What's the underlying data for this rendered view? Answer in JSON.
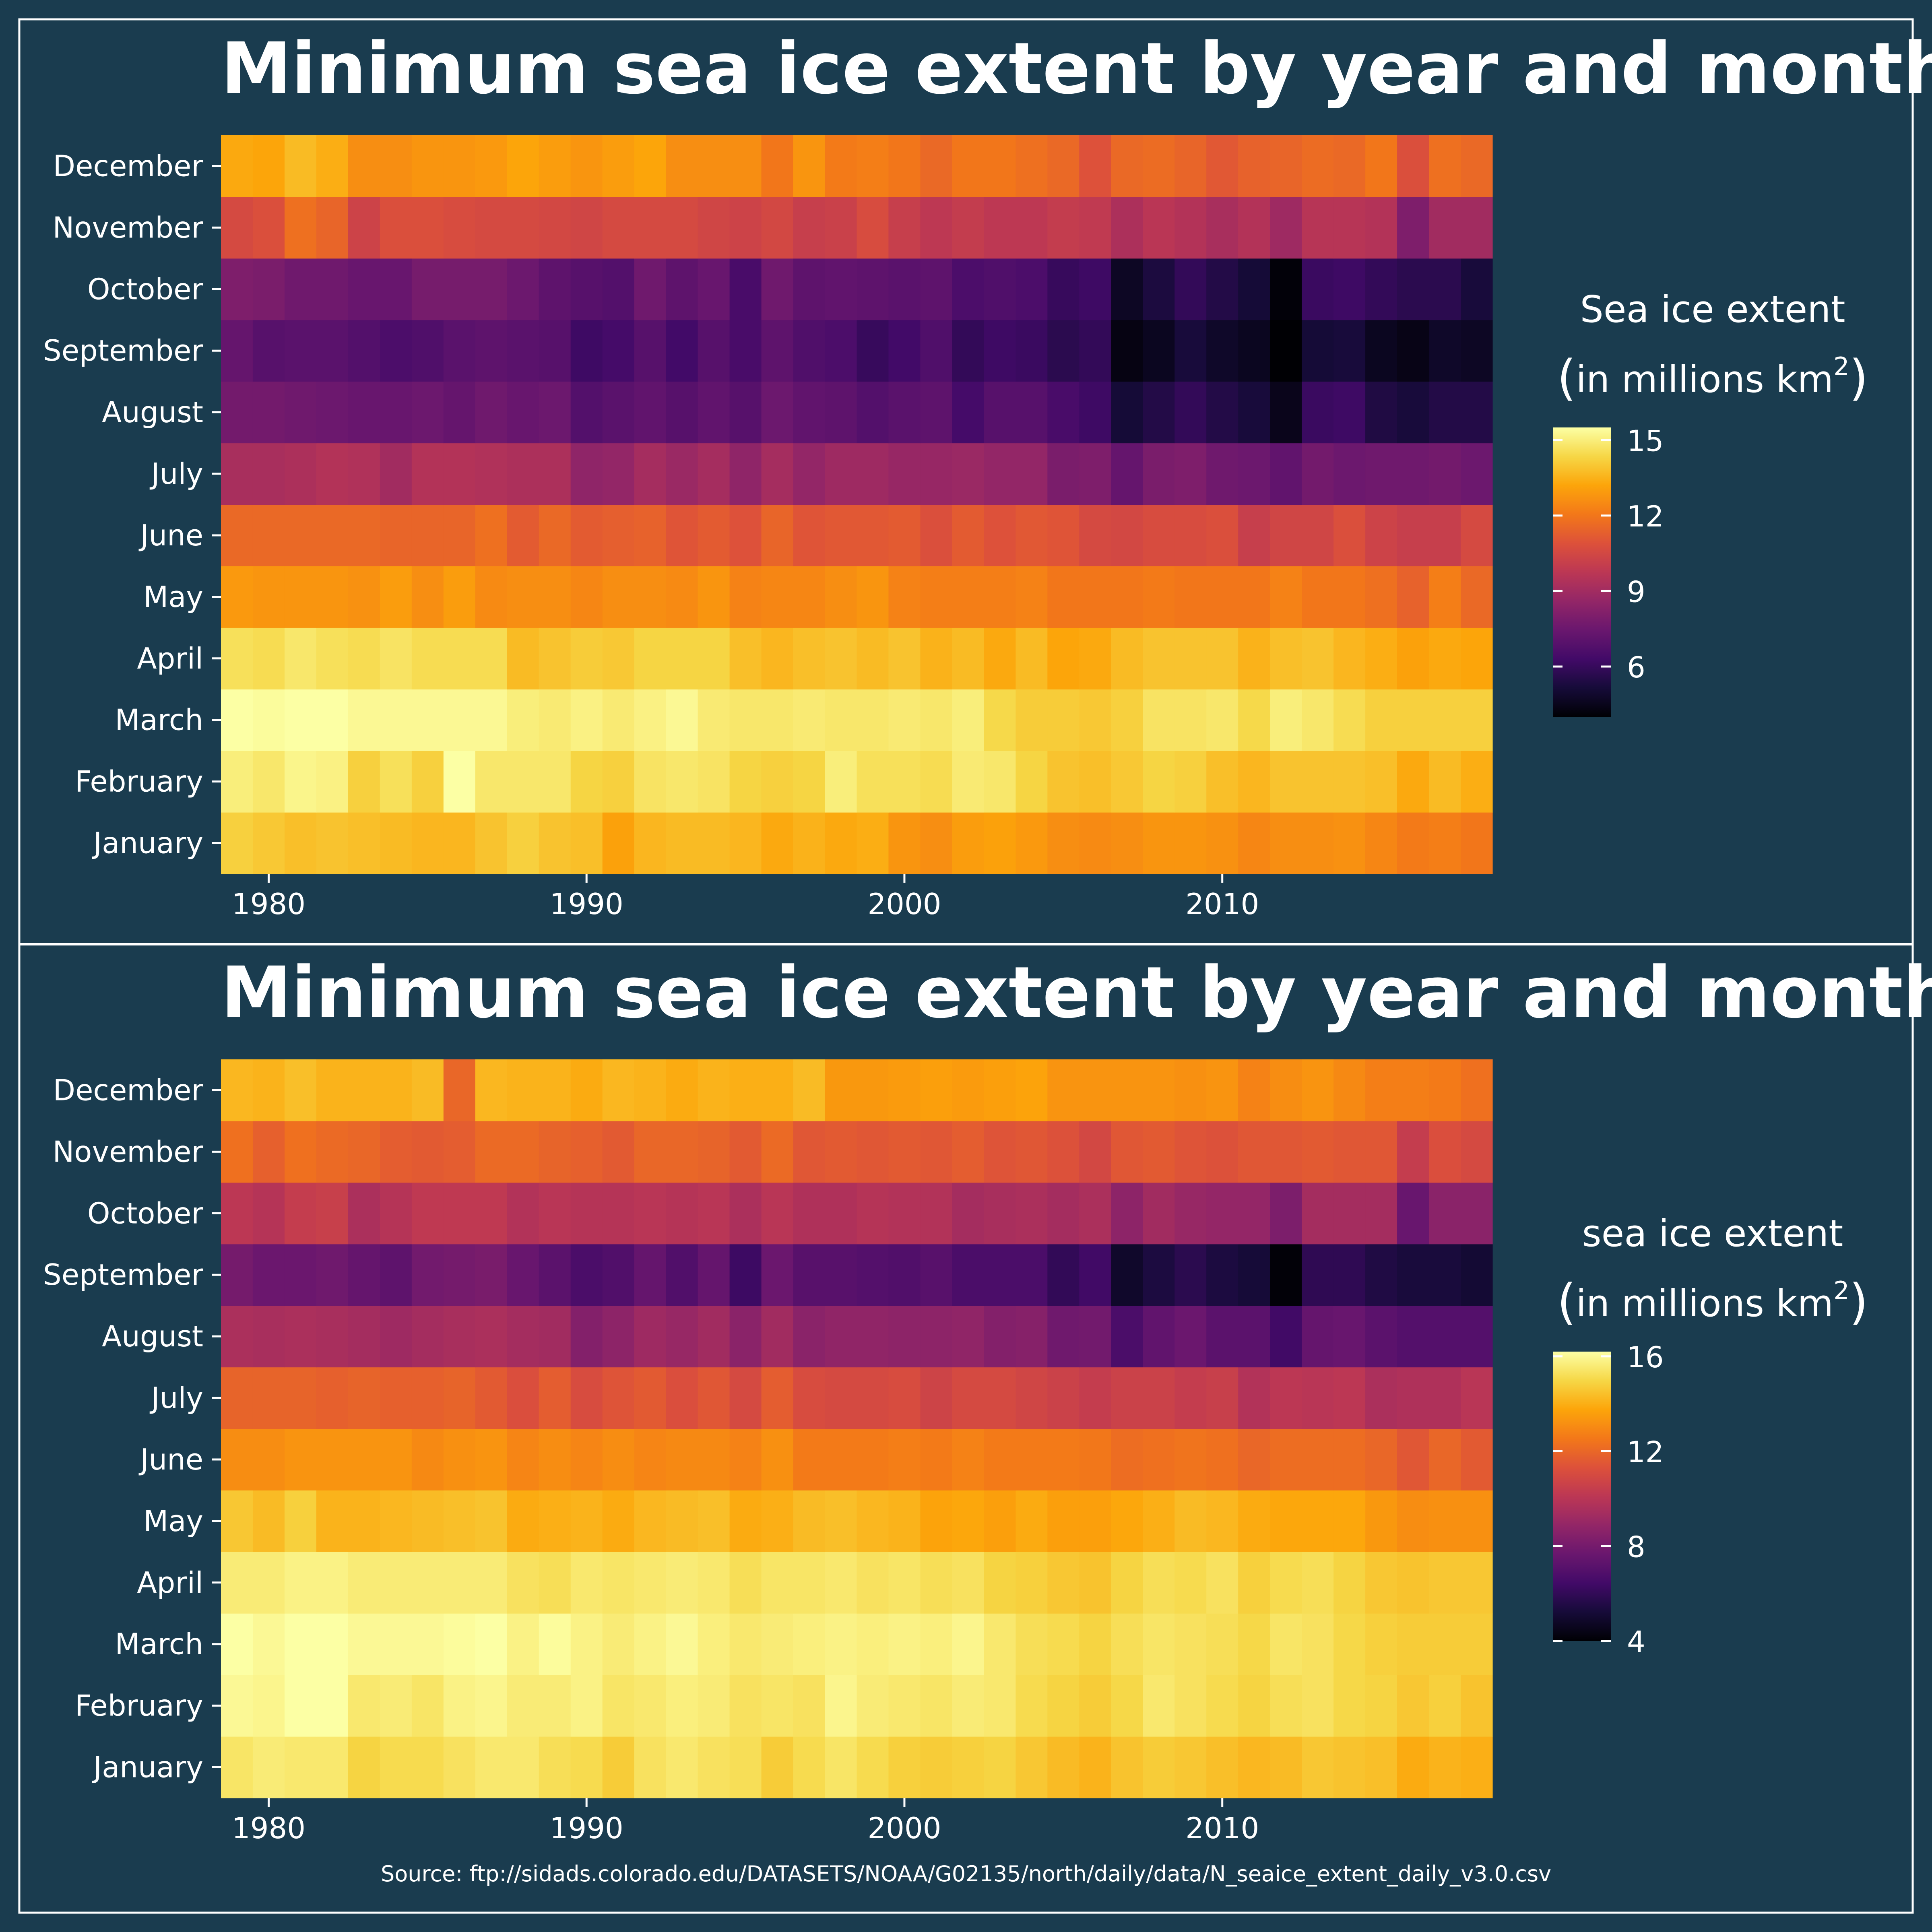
{
  "source": "Source: ftp://sidads.colorado.edu/DATASETS/NOAA/G02135/north/daily/data/N_seaice_extent_daily_v3.0.csv",
  "background_color": "#1a3c4f",
  "colormap": "inferno",
  "chart_data": [
    {
      "type": "heatmap",
      "title": "Minimum sea ice extent by year and month",
      "x": [
        1979,
        1980,
        1981,
        1982,
        1983,
        1984,
        1985,
        1986,
        1987,
        1988,
        1989,
        1990,
        1991,
        1992,
        1993,
        1994,
        1995,
        1996,
        1997,
        1998,
        1999,
        2000,
        2001,
        2002,
        2003,
        2004,
        2005,
        2006,
        2007,
        2008,
        2009,
        2010,
        2011,
        2012,
        2013,
        2014,
        2015,
        2016,
        2017,
        2018
      ],
      "x_ticks": [
        1980,
        1990,
        2000,
        2010
      ],
      "y_categories": [
        "January",
        "February",
        "March",
        "April",
        "May",
        "June",
        "July",
        "August",
        "September",
        "October",
        "November",
        "December"
      ],
      "legend_title_line1": "Sea ice extent",
      "legend_title_line2": "in millions km",
      "legend_sup": "2",
      "legend_range": [
        4.0,
        15.5
      ],
      "legend_ticks": [
        15,
        12,
        9,
        6
      ],
      "values": [
        [
          14.2,
          14.0,
          13.8,
          13.9,
          13.8,
          13.7,
          13.6,
          13.6,
          13.9,
          14.2,
          13.9,
          13.8,
          13.1,
          13.6,
          13.7,
          13.7,
          13.6,
          13.3,
          13.5,
          13.3,
          13.4,
          12.8,
          12.6,
          13.0,
          13.1,
          12.9,
          12.6,
          12.5,
          12.6,
          12.8,
          12.8,
          12.7,
          12.4,
          12.6,
          12.6,
          12.7,
          12.4,
          12.1,
          12.2,
          12.0
        ],
        [
          15.0,
          14.8,
          15.2,
          15.1,
          14.2,
          14.6,
          14.2,
          15.5,
          14.8,
          14.8,
          14.8,
          14.3,
          14.2,
          14.7,
          14.8,
          14.7,
          14.3,
          14.2,
          14.3,
          15.0,
          14.6,
          14.6,
          14.5,
          14.9,
          14.8,
          14.3,
          13.9,
          13.8,
          14.0,
          14.3,
          14.2,
          13.8,
          13.6,
          13.9,
          13.9,
          13.9,
          13.8,
          13.3,
          13.7,
          13.4
        ],
        [
          15.6,
          15.4,
          15.7,
          15.7,
          15.3,
          15.3,
          15.3,
          15.3,
          15.3,
          15.0,
          14.9,
          15.1,
          14.9,
          15.1,
          15.3,
          14.9,
          14.8,
          14.8,
          14.9,
          14.8,
          14.8,
          14.9,
          14.8,
          15.0,
          14.4,
          14.1,
          14.1,
          14.0,
          14.2,
          14.7,
          14.7,
          14.8,
          14.4,
          15.0,
          14.8,
          14.5,
          14.2,
          14.2,
          14.2,
          14.2
        ],
        [
          14.6,
          14.5,
          14.8,
          14.6,
          14.5,
          14.7,
          14.5,
          14.5,
          14.5,
          13.7,
          13.9,
          14.1,
          14.0,
          14.3,
          14.3,
          14.3,
          13.8,
          13.6,
          13.8,
          13.9,
          13.7,
          13.9,
          13.5,
          13.7,
          13.3,
          13.7,
          13.2,
          13.3,
          13.7,
          13.9,
          13.9,
          13.9,
          13.5,
          13.8,
          13.9,
          13.6,
          13.4,
          13.1,
          13.3,
          13.2
        ],
        [
          12.9,
          12.8,
          12.8,
          12.8,
          12.7,
          13.0,
          12.6,
          13.0,
          12.5,
          12.6,
          12.6,
          12.4,
          12.6,
          12.6,
          12.5,
          12.8,
          12.3,
          12.4,
          12.4,
          12.6,
          12.8,
          12.3,
          12.2,
          12.2,
          12.2,
          12.3,
          12.0,
          12.0,
          12.0,
          12.1,
          12.0,
          12.0,
          12.0,
          12.3,
          12.0,
          12.0,
          11.8,
          11.4,
          12.2,
          11.6
        ],
        [
          11.6,
          11.6,
          11.6,
          11.6,
          11.6,
          11.5,
          11.5,
          11.5,
          11.8,
          11.2,
          11.6,
          11.2,
          11.3,
          11.4,
          11.0,
          11.2,
          10.9,
          11.5,
          11.0,
          11.1,
          11.1,
          11.2,
          10.8,
          11.2,
          10.9,
          11.1,
          11.0,
          10.6,
          10.5,
          10.7,
          10.7,
          10.8,
          10.1,
          10.4,
          10.4,
          10.8,
          10.3,
          10.1,
          10.1,
          10.6
        ],
        [
          9.2,
          9.2,
          9.3,
          9.5,
          9.4,
          9.0,
          9.5,
          9.5,
          9.4,
          9.3,
          9.3,
          8.5,
          8.6,
          9.1,
          8.8,
          9.1,
          8.5,
          9.1,
          8.6,
          8.9,
          8.9,
          8.7,
          8.7,
          8.8,
          8.6,
          8.6,
          7.9,
          8.0,
          7.3,
          7.9,
          8.0,
          7.6,
          7.5,
          7.2,
          7.7,
          7.5,
          7.6,
          7.6,
          7.7,
          7.5
        ],
        [
          7.7,
          7.7,
          7.6,
          7.5,
          7.4,
          7.4,
          7.5,
          7.3,
          7.6,
          7.4,
          7.5,
          6.8,
          7.0,
          7.2,
          6.9,
          7.2,
          6.9,
          7.5,
          7.2,
          7.1,
          6.8,
          7.0,
          7.1,
          6.4,
          6.9,
          6.9,
          6.5,
          6.2,
          5.1,
          5.5,
          5.9,
          5.5,
          5.2,
          4.5,
          6.1,
          6.2,
          5.4,
          5.2,
          5.5,
          5.5
        ],
        [
          7.3,
          6.9,
          7.0,
          7.0,
          6.8,
          6.6,
          6.7,
          7.0,
          7.1,
          7.0,
          6.9,
          6.2,
          6.4,
          6.9,
          6.3,
          6.9,
          6.5,
          7.1,
          6.7,
          6.6,
          6.0,
          6.3,
          6.7,
          5.9,
          6.2,
          6.1,
          5.7,
          5.9,
          4.3,
          4.6,
          5.2,
          4.8,
          4.6,
          3.4,
          5.1,
          5.2,
          4.6,
          4.4,
          4.8,
          4.7
        ],
        [
          8.0,
          7.9,
          7.6,
          7.6,
          7.4,
          7.4,
          7.8,
          7.8,
          7.8,
          7.5,
          7.1,
          6.9,
          6.8,
          7.6,
          7.1,
          7.4,
          6.5,
          7.6,
          7.1,
          7.2,
          7.1,
          7.0,
          7.1,
          6.6,
          6.7,
          6.6,
          6.0,
          6.2,
          4.7,
          5.3,
          5.9,
          5.5,
          5.1,
          4.1,
          6.1,
          6.2,
          5.9,
          5.7,
          5.7,
          5.2
        ],
        [
          10.6,
          10.8,
          11.8,
          11.5,
          10.3,
          10.8,
          10.8,
          10.7,
          10.6,
          10.6,
          10.5,
          10.4,
          10.6,
          10.6,
          10.6,
          10.4,
          10.3,
          10.5,
          10.1,
          10.2,
          10.7,
          10.1,
          9.8,
          10.0,
          9.8,
          9.8,
          10.0,
          9.9,
          9.3,
          9.7,
          9.5,
          9.2,
          9.5,
          8.9,
          9.6,
          9.6,
          9.5,
          8.0,
          9.0,
          9.0
        ],
        [
          13.3,
          13.2,
          13.7,
          13.4,
          12.6,
          12.6,
          12.8,
          12.8,
          12.9,
          13.2,
          13.0,
          12.8,
          13.0,
          13.2,
          12.6,
          12.6,
          12.6,
          12.0,
          12.8,
          12.1,
          12.2,
          12.0,
          11.6,
          12.0,
          12.0,
          11.8,
          11.6,
          10.9,
          11.6,
          11.7,
          11.5,
          11.1,
          11.4,
          11.5,
          11.7,
          11.6,
          12.0,
          10.8,
          11.8,
          11.6
        ]
      ]
    },
    {
      "type": "heatmap",
      "title": "Minimum sea ice extent by year and month",
      "x": [
        1979,
        1980,
        1981,
        1982,
        1983,
        1984,
        1985,
        1986,
        1987,
        1988,
        1989,
        1990,
        1991,
        1992,
        1993,
        1994,
        1995,
        1996,
        1997,
        1998,
        1999,
        2000,
        2001,
        2002,
        2003,
        2004,
        2005,
        2006,
        2007,
        2008,
        2009,
        2010,
        2011,
        2012,
        2013,
        2014,
        2015,
        2016,
        2017,
        2018
      ],
      "x_ticks": [
        1980,
        1990,
        2000,
        2010
      ],
      "y_categories": [
        "January",
        "February",
        "March",
        "April",
        "May",
        "June",
        "July",
        "August",
        "September",
        "October",
        "November",
        "December"
      ],
      "legend_title_line1": "sea ice extent",
      "legend_title_line2": "in millions km",
      "legend_sup": "2",
      "legend_range": [
        4.0,
        16.2
      ],
      "legend_ticks": [
        16,
        12,
        8,
        4
      ],
      "values": [
        [
          15.4,
          15.6,
          15.5,
          15.5,
          14.9,
          15.1,
          15.1,
          15.3,
          15.5,
          15.5,
          15.2,
          15.1,
          14.7,
          15.3,
          15.5,
          15.3,
          15.2,
          14.7,
          15.1,
          15.4,
          15.1,
          14.8,
          14.7,
          14.8,
          14.9,
          14.6,
          14.3,
          14.1,
          14.5,
          14.7,
          14.6,
          14.4,
          14.2,
          14.3,
          14.6,
          14.5,
          14.4,
          13.9,
          14.1,
          14.0
        ],
        [
          16.0,
          15.9,
          16.2,
          16.2,
          15.5,
          15.6,
          15.4,
          15.8,
          15.9,
          15.6,
          15.6,
          15.8,
          15.4,
          15.5,
          15.7,
          15.6,
          15.3,
          15.4,
          15.3,
          15.9,
          15.6,
          15.5,
          15.4,
          15.6,
          15.5,
          15.1,
          14.9,
          14.7,
          15.0,
          15.5,
          15.3,
          15.1,
          14.9,
          15.2,
          15.3,
          15.0,
          14.9,
          14.6,
          14.8,
          14.5
        ],
        [
          16.2,
          16.0,
          16.3,
          16.3,
          16.0,
          16.0,
          16.0,
          16.1,
          16.2,
          15.8,
          16.1,
          15.8,
          15.6,
          15.8,
          16.0,
          15.7,
          15.5,
          15.6,
          15.7,
          15.8,
          15.7,
          15.8,
          15.7,
          15.9,
          15.5,
          15.2,
          15.1,
          14.9,
          15.2,
          15.4,
          15.3,
          15.2,
          15.0,
          15.4,
          15.3,
          15.0,
          14.8,
          14.7,
          14.7,
          14.7
        ],
        [
          15.6,
          15.6,
          15.8,
          15.8,
          15.6,
          15.6,
          15.6,
          15.6,
          15.6,
          15.3,
          15.2,
          15.5,
          15.4,
          15.5,
          15.6,
          15.5,
          15.2,
          15.4,
          15.4,
          15.5,
          15.3,
          15.4,
          15.2,
          15.3,
          14.9,
          14.8,
          14.6,
          14.5,
          14.9,
          15.2,
          15.1,
          15.3,
          14.8,
          15.1,
          15.2,
          14.9,
          14.6,
          14.5,
          14.6,
          14.6
        ],
        [
          14.6,
          14.3,
          14.8,
          14.1,
          14.1,
          14.2,
          14.3,
          14.4,
          14.5,
          13.9,
          14.0,
          14.1,
          13.9,
          14.2,
          14.3,
          14.4,
          13.9,
          14.0,
          14.3,
          14.4,
          14.2,
          14.1,
          13.7,
          13.8,
          13.6,
          13.9,
          13.6,
          13.6,
          13.8,
          14.0,
          14.3,
          14.2,
          13.9,
          13.8,
          13.8,
          13.8,
          13.4,
          13.1,
          13.2,
          13.2
        ],
        [
          13.1,
          13.1,
          13.3,
          13.3,
          13.3,
          13.3,
          13.0,
          13.2,
          13.3,
          12.9,
          13.1,
          12.9,
          13.1,
          12.9,
          13.0,
          13.0,
          12.8,
          13.2,
          12.6,
          12.6,
          12.6,
          12.7,
          12.6,
          12.8,
          12.6,
          12.6,
          12.6,
          12.5,
          12.2,
          12.3,
          12.4,
          12.3,
          12.0,
          12.2,
          12.2,
          12.2,
          12.0,
          11.5,
          12.0,
          11.6
        ],
        [
          11.9,
          11.9,
          11.9,
          11.8,
          11.9,
          11.8,
          11.8,
          11.9,
          11.6,
          11.2,
          11.7,
          11.1,
          11.4,
          11.6,
          11.2,
          11.5,
          11.0,
          11.7,
          11.1,
          11.0,
          11.0,
          11.1,
          10.7,
          11.0,
          11.0,
          10.8,
          10.6,
          10.4,
          10.6,
          10.6,
          10.4,
          10.5,
          9.8,
          10.1,
          10.0,
          10.1,
          9.6,
          9.7,
          9.7,
          10.0
        ],
        [
          9.6,
          9.5,
          9.6,
          9.5,
          9.4,
          9.2,
          9.4,
          9.5,
          9.6,
          9.4,
          9.3,
          8.4,
          8.7,
          9.2,
          9.0,
          9.3,
          8.6,
          9.3,
          8.6,
          8.8,
          8.8,
          8.7,
          8.7,
          8.8,
          8.4,
          8.5,
          7.8,
          7.9,
          6.7,
          7.4,
          7.7,
          7.2,
          7.2,
          6.4,
          7.5,
          7.6,
          7.2,
          7.0,
          7.0,
          7.0
        ],
        [
          8.0,
          7.7,
          7.7,
          7.8,
          7.5,
          7.3,
          7.9,
          8.0,
          8.1,
          7.6,
          7.2,
          6.7,
          6.9,
          7.5,
          6.9,
          7.5,
          6.3,
          7.7,
          7.1,
          7.1,
          7.0,
          6.9,
          7.1,
          6.7,
          6.7,
          6.7,
          6.0,
          6.4,
          4.9,
          5.4,
          5.8,
          5.4,
          5.2,
          4.1,
          5.9,
          5.9,
          5.5,
          5.3,
          5.3,
          5.1
        ],
        [
          10.1,
          9.9,
          10.4,
          10.5,
          9.6,
          9.9,
          10.2,
          10.2,
          10.2,
          9.8,
          10.0,
          9.9,
          9.9,
          10.0,
          9.9,
          10.0,
          9.6,
          10.0,
          9.7,
          9.7,
          9.9,
          9.8,
          9.8,
          9.4,
          9.5,
          9.6,
          9.4,
          9.6,
          8.7,
          9.3,
          9.0,
          8.9,
          8.9,
          8.2,
          9.4,
          9.4,
          9.4,
          7.6,
          8.6,
          8.6
        ],
        [
          12.3,
          11.8,
          12.3,
          12.1,
          12.0,
          11.7,
          11.6,
          11.7,
          12.1,
          12.1,
          11.9,
          11.8,
          11.6,
          12.0,
          12.0,
          11.9,
          11.6,
          12.1,
          11.5,
          11.6,
          11.5,
          11.6,
          11.5,
          11.7,
          11.4,
          11.5,
          11.3,
          10.9,
          11.5,
          11.6,
          11.4,
          11.3,
          11.5,
          11.5,
          11.6,
          11.5,
          11.5,
          10.4,
          11.2,
          11.0
        ],
        [
          14.2,
          14.1,
          14.4,
          14.1,
          14.1,
          14.1,
          14.3,
          12.0,
          14.2,
          14.1,
          14.1,
          13.9,
          14.2,
          14.1,
          13.9,
          14.1,
          14.0,
          14.0,
          14.3,
          13.4,
          13.4,
          13.5,
          13.6,
          13.5,
          13.6,
          13.7,
          13.3,
          13.3,
          13.3,
          13.3,
          13.2,
          13.3,
          12.8,
          13.1,
          13.3,
          13.0,
          12.7,
          12.7,
          12.6,
          12.3
        ]
      ]
    }
  ]
}
